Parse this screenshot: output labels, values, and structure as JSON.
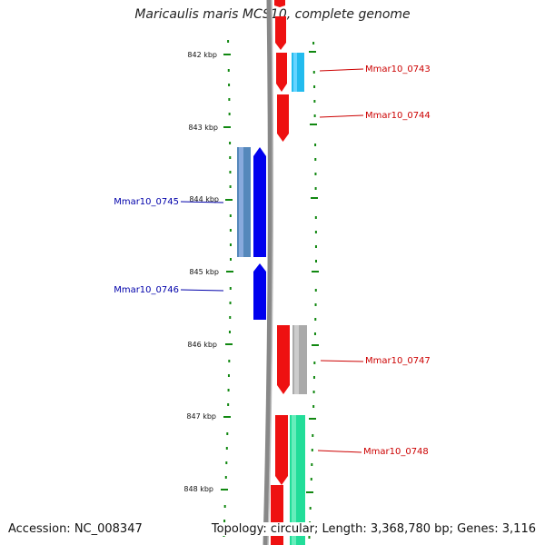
{
  "title": "Maricaulis maris MCS10, complete genome",
  "footer": {
    "accession": "Accession: NC_008347",
    "summary": "Topology: circular; Length: 3,368,780 bp; Genes: 3,116"
  },
  "axis": {
    "tick_labels": [
      "842 kbp",
      "843 kbp",
      "844 kbp",
      "845 kbp",
      "846 kbp",
      "847 kbp",
      "848 kbp"
    ]
  },
  "colors": {
    "forward_cds": "#ee1111",
    "reverse_cds": "#0000ee",
    "reverse_rna": "#5588bb",
    "tick": "#118811",
    "backbone": "#888888",
    "forward_label": "#cc0000",
    "reverse_label": "#0000aa"
  },
  "genes": [
    {
      "label": "Mmar10_0743",
      "strand": "forward"
    },
    {
      "label": "Mmar10_0744",
      "strand": "forward"
    },
    {
      "label": "Mmar10_0745",
      "strand": "reverse"
    },
    {
      "label": "Mmar10_0746",
      "strand": "reverse"
    },
    {
      "label": "Mmar10_0747",
      "strand": "forward"
    },
    {
      "label": "Mmar10_0748",
      "strand": "forward"
    }
  ]
}
